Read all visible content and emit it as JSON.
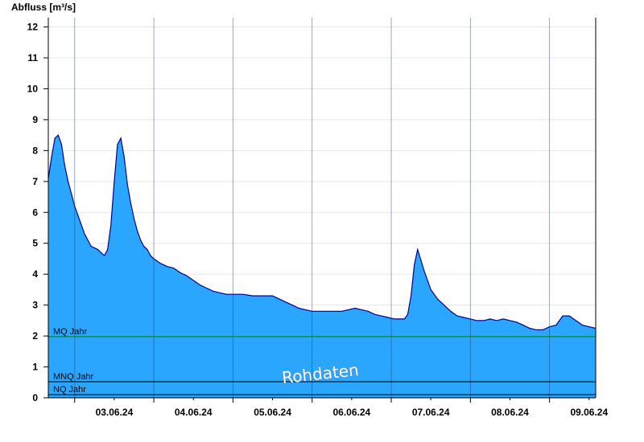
{
  "chart_data": {
    "type": "area",
    "ylabel": "Abfluss [m³/s]",
    "ylim": [
      0,
      12.3
    ],
    "yticks": [
      0,
      1,
      2,
      3,
      4,
      5,
      6,
      7,
      8,
      9,
      10,
      11,
      12
    ],
    "xlim": [
      "2024-06-02T16:00",
      "2024-06-09T14:00"
    ],
    "xticks": [
      "03.06.24",
      "04.06.24",
      "05.06.24",
      "06.06.24",
      "07.06.24",
      "08.06.24",
      "09.06.24"
    ],
    "grid": true,
    "watermark": "Rohdaten",
    "fill_color": "#2aa6ff",
    "line_color": "#00008b",
    "reference_lines": [
      {
        "label": "MQ Jahr",
        "value": 1.98,
        "color": "#008000"
      },
      {
        "label": "MNQ Jahr",
        "value": 0.52,
        "color": "#000000"
      },
      {
        "label": "NQ Jahr",
        "value": 0.1,
        "color": "#000000"
      }
    ],
    "series": [
      {
        "x": [
          "2024-06-02T16:00",
          "2024-06-02T17:00",
          "2024-06-02T18:00",
          "2024-06-02T19:00",
          "2024-06-02T20:00",
          "2024-06-02T21:00",
          "2024-06-02T22:00",
          "2024-06-02T23:00",
          "2024-06-03T00:00",
          "2024-06-03T01:00",
          "2024-06-03T02:00",
          "2024-06-03T03:00",
          "2024-06-03T05:00",
          "2024-06-03T07:00",
          "2024-06-03T08:00",
          "2024-06-03T09:00",
          "2024-06-03T10:00",
          "2024-06-03T11:00",
          "2024-06-03T12:00",
          "2024-06-03T13:00",
          "2024-06-03T14:00",
          "2024-06-03T15:00",
          "2024-06-03T16:00",
          "2024-06-03T17:00",
          "2024-06-03T18:00",
          "2024-06-03T19:00",
          "2024-06-03T20:00",
          "2024-06-03T21:00",
          "2024-06-03T22:00",
          "2024-06-03T23:00",
          "2024-06-04T00:00",
          "2024-06-04T02:00",
          "2024-06-04T04:00",
          "2024-06-04T06:00",
          "2024-06-04T08:00",
          "2024-06-04T10:00",
          "2024-06-04T12:00",
          "2024-06-04T14:00",
          "2024-06-04T16:00",
          "2024-06-04T18:00",
          "2024-06-04T20:00",
          "2024-06-04T22:00",
          "2024-06-05T00:00",
          "2024-06-05T03:00",
          "2024-06-05T06:00",
          "2024-06-05T09:00",
          "2024-06-05T12:00",
          "2024-06-05T14:00",
          "2024-06-05T16:00",
          "2024-06-05T18:00",
          "2024-06-05T20:00",
          "2024-06-05T22:00",
          "2024-06-06T00:00",
          "2024-06-06T03:00",
          "2024-06-06T06:00",
          "2024-06-06T09:00",
          "2024-06-06T11:00",
          "2024-06-06T13:00",
          "2024-06-06T15:00",
          "2024-06-06T17:00",
          "2024-06-06T19:00",
          "2024-06-06T21:00",
          "2024-06-06T23:00",
          "2024-06-07T01:00",
          "2024-06-07T02:00",
          "2024-06-07T03:00",
          "2024-06-07T04:00",
          "2024-06-07T05:00",
          "2024-06-07T06:00",
          "2024-06-07T07:00",
          "2024-06-07T08:00",
          "2024-06-07T10:00",
          "2024-06-07T12:00",
          "2024-06-07T14:00",
          "2024-06-07T16:00",
          "2024-06-07T18:00",
          "2024-06-07T20:00",
          "2024-06-07T22:00",
          "2024-06-08T00:00",
          "2024-06-08T02:00",
          "2024-06-08T04:00",
          "2024-06-08T06:00",
          "2024-06-08T08:00",
          "2024-06-08T10:00",
          "2024-06-08T12:00",
          "2024-06-08T14:00",
          "2024-06-08T16:00",
          "2024-06-08T18:00",
          "2024-06-08T20:00",
          "2024-06-08T22:00",
          "2024-06-09T00:00",
          "2024-06-09T02:00",
          "2024-06-09T04:00",
          "2024-06-09T06:00",
          "2024-06-09T08:00",
          "2024-06-09T10:00",
          "2024-06-09T12:00",
          "2024-06-09T14:00"
        ],
        "y": [
          7.1,
          7.8,
          8.4,
          8.5,
          8.2,
          7.5,
          7.0,
          6.6,
          6.2,
          5.9,
          5.6,
          5.3,
          4.9,
          4.8,
          4.7,
          4.6,
          4.8,
          5.6,
          7.0,
          8.2,
          8.4,
          7.8,
          6.9,
          6.3,
          5.8,
          5.4,
          5.1,
          4.9,
          4.8,
          4.6,
          4.5,
          4.35,
          4.25,
          4.2,
          4.05,
          3.95,
          3.8,
          3.65,
          3.55,
          3.45,
          3.4,
          3.35,
          3.35,
          3.35,
          3.3,
          3.3,
          3.3,
          3.2,
          3.1,
          3.0,
          2.9,
          2.85,
          2.8,
          2.8,
          2.8,
          2.8,
          2.85,
          2.9,
          2.85,
          2.8,
          2.7,
          2.65,
          2.6,
          2.55,
          2.55,
          2.55,
          2.55,
          2.7,
          3.3,
          4.3,
          4.8,
          4.1,
          3.5,
          3.2,
          3.0,
          2.8,
          2.65,
          2.6,
          2.55,
          2.5,
          2.5,
          2.55,
          2.5,
          2.55,
          2.5,
          2.45,
          2.35,
          2.25,
          2.2,
          2.2,
          2.3,
          2.35,
          2.65,
          2.65,
          2.5,
          2.35,
          2.3,
          2.25
        ]
      }
    ]
  }
}
